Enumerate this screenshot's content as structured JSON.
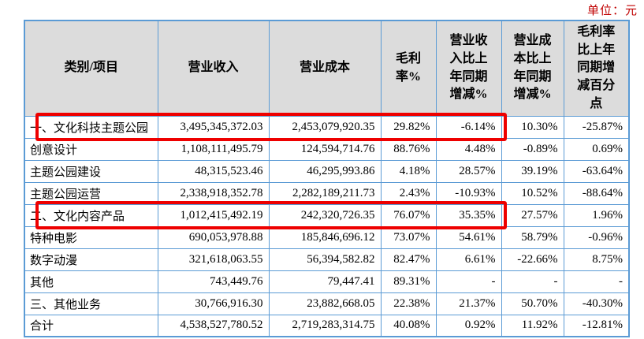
{
  "unit_label": "单位：元",
  "colors": {
    "table_border": "#5b9bd5",
    "header_bg": "#dcdcdc",
    "highlight": "#ee0000",
    "unit_text": "#c00000"
  },
  "table": {
    "columns": [
      {
        "label": "类别/项目"
      },
      {
        "label": "营业收入"
      },
      {
        "label": "营业成本"
      },
      {
        "label": "毛利\n率%"
      },
      {
        "label": "营业收\n入比上\n年同期\n增减%"
      },
      {
        "label": "营业成\n本比上\n年同期\n增减%"
      },
      {
        "label": "毛利率\n比上年\n同期增\n减百分\n点"
      }
    ],
    "rows": [
      {
        "highlighted": true,
        "cells": [
          "一、文化科技主题公园",
          "3,495,345,372.03",
          "2,453,079,920.35",
          "29.82%",
          "-6.14%",
          "10.30%",
          "-25.87%"
        ]
      },
      {
        "highlighted": false,
        "cells": [
          "创意设计",
          "1,108,111,495.79",
          "124,594,714.76",
          "88.76%",
          "4.48%",
          "-0.89%",
          "0.69%"
        ]
      },
      {
        "highlighted": false,
        "cells": [
          "主题公园建设",
          "48,315,523.46",
          "46,295,993.86",
          "4.18%",
          "28.57%",
          "39.19%",
          "-63.64%"
        ]
      },
      {
        "highlighted": false,
        "cells": [
          "主题公园运营",
          "2,338,918,352.78",
          "2,282,189,211.73",
          "2.43%",
          "-10.93%",
          "10.52%",
          "-88.64%"
        ]
      },
      {
        "highlighted": true,
        "cells": [
          "二、文化内容产品",
          "1,012,415,492.19",
          "242,320,726.35",
          "76.07%",
          "35.35%",
          "27.57%",
          "1.96%"
        ]
      },
      {
        "highlighted": false,
        "cells": [
          "特种电影",
          "690,053,978.88",
          "185,846,696.12",
          "73.07%",
          "54.61%",
          "58.79%",
          "-0.96%"
        ]
      },
      {
        "highlighted": false,
        "cells": [
          "数字动漫",
          "321,618,063.55",
          "56,394,582.82",
          "82.47%",
          "6.61%",
          "-22.66%",
          "8.75%"
        ]
      },
      {
        "highlighted": false,
        "cells": [
          "其他",
          "743,449.76",
          "79,447.41",
          "89.31%",
          "-",
          "-",
          "-"
        ]
      },
      {
        "highlighted": false,
        "cells": [
          "三、其他业务",
          "30,766,916.30",
          "23,882,668.05",
          "22.38%",
          "21.37%",
          "50.70%",
          "-40.30%"
        ]
      },
      {
        "highlighted": false,
        "cells": [
          "合计",
          "4,538,527,780.52",
          "2,719,283,314.75",
          "40.08%",
          "0.92%",
          "11.92%",
          "-12.81%"
        ]
      }
    ],
    "highlight_span": {
      "first_column_index": 0,
      "last_column_index": 4
    }
  }
}
